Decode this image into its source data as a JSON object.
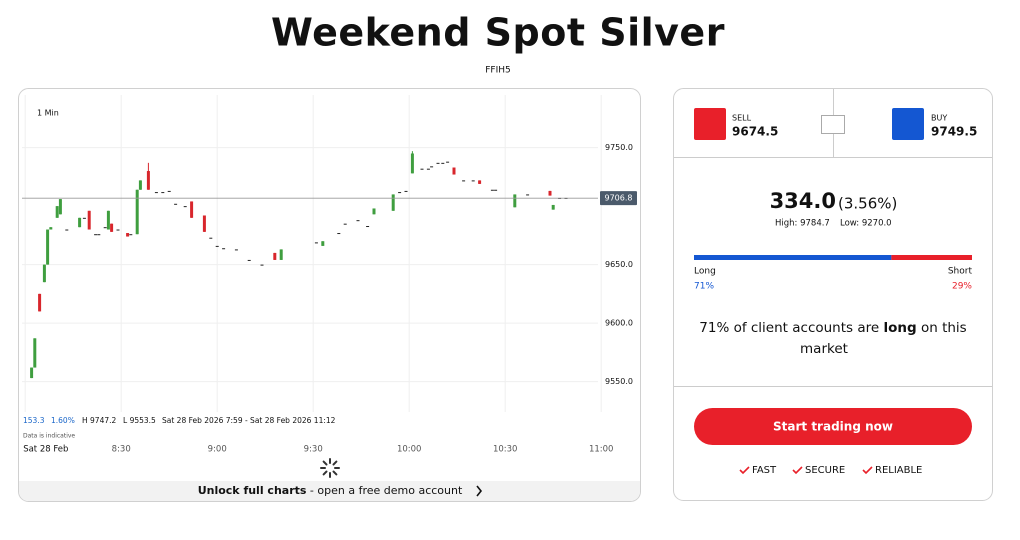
{
  "title": "Weekend Spot Silver",
  "code": "FFIH5",
  "chart_data": {
    "type": "candlestick",
    "interval": "1 Min",
    "info": {
      "change": "153.3",
      "change_pct": "1.60%",
      "high": "H 9747.2",
      "low": "L 9553.5",
      "range": "Sat 28 Feb 2026 7:59 - Sat 28 Feb 2026 11:12",
      "note": "Data is indicative"
    },
    "x": [
      482,
      483,
      484.5,
      486,
      487,
      488,
      490,
      491,
      493,
      497,
      498.5,
      500,
      502,
      503,
      505,
      506,
      507,
      509,
      512,
      513,
      515,
      516,
      518.5,
      521,
      523,
      525,
      527,
      530,
      532,
      536,
      538,
      540,
      542,
      546,
      550,
      554,
      558,
      560,
      571,
      573,
      578,
      580,
      584,
      587,
      589,
      595,
      597,
      599,
      601,
      604,
      606,
      607,
      609,
      610.5,
      612,
      614,
      617,
      620,
      622,
      626,
      627,
      633,
      637,
      644,
      645,
      647,
      649
    ],
    "open": [
      9553,
      9562,
      9625,
      9635,
      9650,
      9680,
      9690,
      9693,
      9680,
      9682,
      9690,
      9696,
      9676,
      9676,
      9682,
      9680,
      9685,
      9680,
      9677,
      9676,
      9676,
      9714,
      9730,
      9712,
      9712,
      9713,
      9702,
      9700,
      9704,
      9692,
      9673,
      9666,
      9664,
      9663,
      9654,
      9650,
      9660,
      9654,
      9669,
      9666,
      9677,
      9685,
      9688,
      9683,
      9693,
      9696,
      9712,
      9713,
      9728,
      9732,
      9732,
      9734,
      9737,
      9737,
      9738,
      9733,
      9722,
      9722,
      9722,
      9714,
      9714,
      9699,
      9710,
      9713,
      9697,
      9707,
      9707
    ],
    "high": [
      9562,
      9587,
      9625,
      9650,
      9680,
      9682,
      9700,
      9706,
      9680,
      9690,
      9690,
      9696,
      9676,
      9676,
      9682,
      9696,
      9685,
      9680,
      9677,
      9676,
      9714,
      9722,
      9737,
      9712,
      9712,
      9713,
      9702,
      9700,
      9704,
      9692,
      9673,
      9666,
      9664,
      9663,
      9654,
      9650,
      9660,
      9663,
      9669,
      9670,
      9677,
      9685,
      9688,
      9683,
      9698,
      9710,
      9712,
      9713,
      9747,
      9732,
      9732,
      9734,
      9737,
      9737,
      9738,
      9733,
      9722,
      9722,
      9722,
      9714,
      9714,
      9710,
      9710,
      9713,
      9701,
      9707,
      9707
    ],
    "low": [
      9553,
      9562,
      9610,
      9635,
      9650,
      9680,
      9690,
      9693,
      9680,
      9682,
      9690,
      9680,
      9676,
      9676,
      9682,
      9680,
      9678,
      9680,
      9674,
      9676,
      9676,
      9714,
      9714,
      9712,
      9712,
      9713,
      9702,
      9700,
      9690,
      9678,
      9673,
      9666,
      9664,
      9663,
      9654,
      9650,
      9654,
      9654,
      9669,
      9666,
      9677,
      9685,
      9688,
      9683,
      9693,
      9696,
      9712,
      9713,
      9728,
      9732,
      9732,
      9734,
      9737,
      9737,
      9738,
      9727,
      9722,
      9722,
      9719,
      9714,
      9714,
      9699,
      9710,
      9709,
      9697,
      9707,
      9707
    ],
    "close": [
      9562,
      9587,
      9610,
      9650,
      9680,
      9682,
      9700,
      9706,
      9680,
      9690,
      9690,
      9680,
      9676,
      9676,
      9682,
      9696,
      9678,
      9680,
      9674,
      9676,
      9714,
      9722,
      9714,
      9712,
      9712,
      9713,
      9702,
      9700,
      9690,
      9678,
      9673,
      9666,
      9664,
      9663,
      9654,
      9650,
      9654,
      9663,
      9669,
      9670,
      9677,
      9685,
      9688,
      9683,
      9698,
      9710,
      9712,
      9713,
      9745,
      9732,
      9732,
      9734,
      9737,
      9737,
      9738,
      9727,
      9722,
      9722,
      9719,
      9714,
      9714,
      9710,
      9710,
      9709,
      9701,
      9707,
      9707
    ],
    "up_color": "#3f9e3f",
    "down_color": "#d8262c",
    "flat_color": "#222222",
    "last_price": 9706.8,
    "xlim": [
      479,
      659
    ],
    "xticks": [
      {
        "value": 480,
        "label": "Sat 28 Feb"
      },
      {
        "value": 510,
        "label": "8:30"
      },
      {
        "value": 540,
        "label": "9:00"
      },
      {
        "value": 570,
        "label": "9:30"
      },
      {
        "value": 600,
        "label": "10:00"
      },
      {
        "value": 630,
        "label": "10:30"
      },
      {
        "value": 660,
        "label": "11:00"
      }
    ],
    "ylim": [
      9524,
      9795
    ],
    "yticks": [
      {
        "value": 9550,
        "label": "9550.0"
      },
      {
        "value": 9600,
        "label": "9600.0"
      },
      {
        "value": 9650,
        "label": "9650.0"
      },
      {
        "value": 9750,
        "label": "9750.0"
      }
    ],
    "grid": true,
    "footer": [
      "Unlock full charts",
      " - open a free demo account"
    ]
  },
  "panel": {
    "sell_label": "SELL",
    "sell_price": "9674.5",
    "buy_label": "BUY",
    "buy_price": "9749.5",
    "change": "334.0",
    "change_pct": "(3.56%)",
    "high": "High: 9784.7",
    "low": "Low: 9270.0",
    "sentiment": {
      "long_label": "Long",
      "short_label": "Short",
      "long": 71,
      "short": 29,
      "value_labels": [
        "71%",
        "29%"
      ],
      "long_color": "#1457d2",
      "short_color": "#e8202a"
    },
    "sentence": [
      "71% of client accounts are ",
      "long",
      " on this"
    ],
    "sentence_end": "market",
    "button": "Start trading now",
    "features": [
      "FAST",
      "SECURE",
      "RELIABLE"
    ]
  }
}
